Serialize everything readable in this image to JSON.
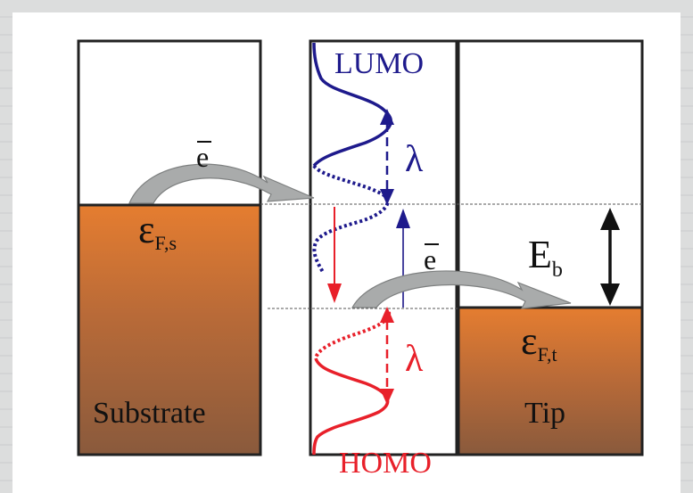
{
  "diagram": {
    "labels": {
      "lumo": "LUMO",
      "homo": "HOMO",
      "lambda_top": "λ",
      "lambda_bottom": "λ",
      "electron_left": "e",
      "electron_right": "e",
      "barrier_symbol": "E",
      "barrier_sub": "b",
      "fermi_substrate_symbol": "ε",
      "fermi_substrate_sub": "F,s",
      "fermi_tip_symbol": "ε",
      "fermi_tip_sub": "F,t",
      "substrate": "Substrate",
      "tip": "Tip"
    },
    "colors": {
      "lumo": "#1e1a8c",
      "homo": "#e8202a",
      "metal_top": "#e07a2e",
      "metal_bottom": "#8c5a38",
      "arrow": "#a8aaaa",
      "guide": "#555555"
    }
  }
}
